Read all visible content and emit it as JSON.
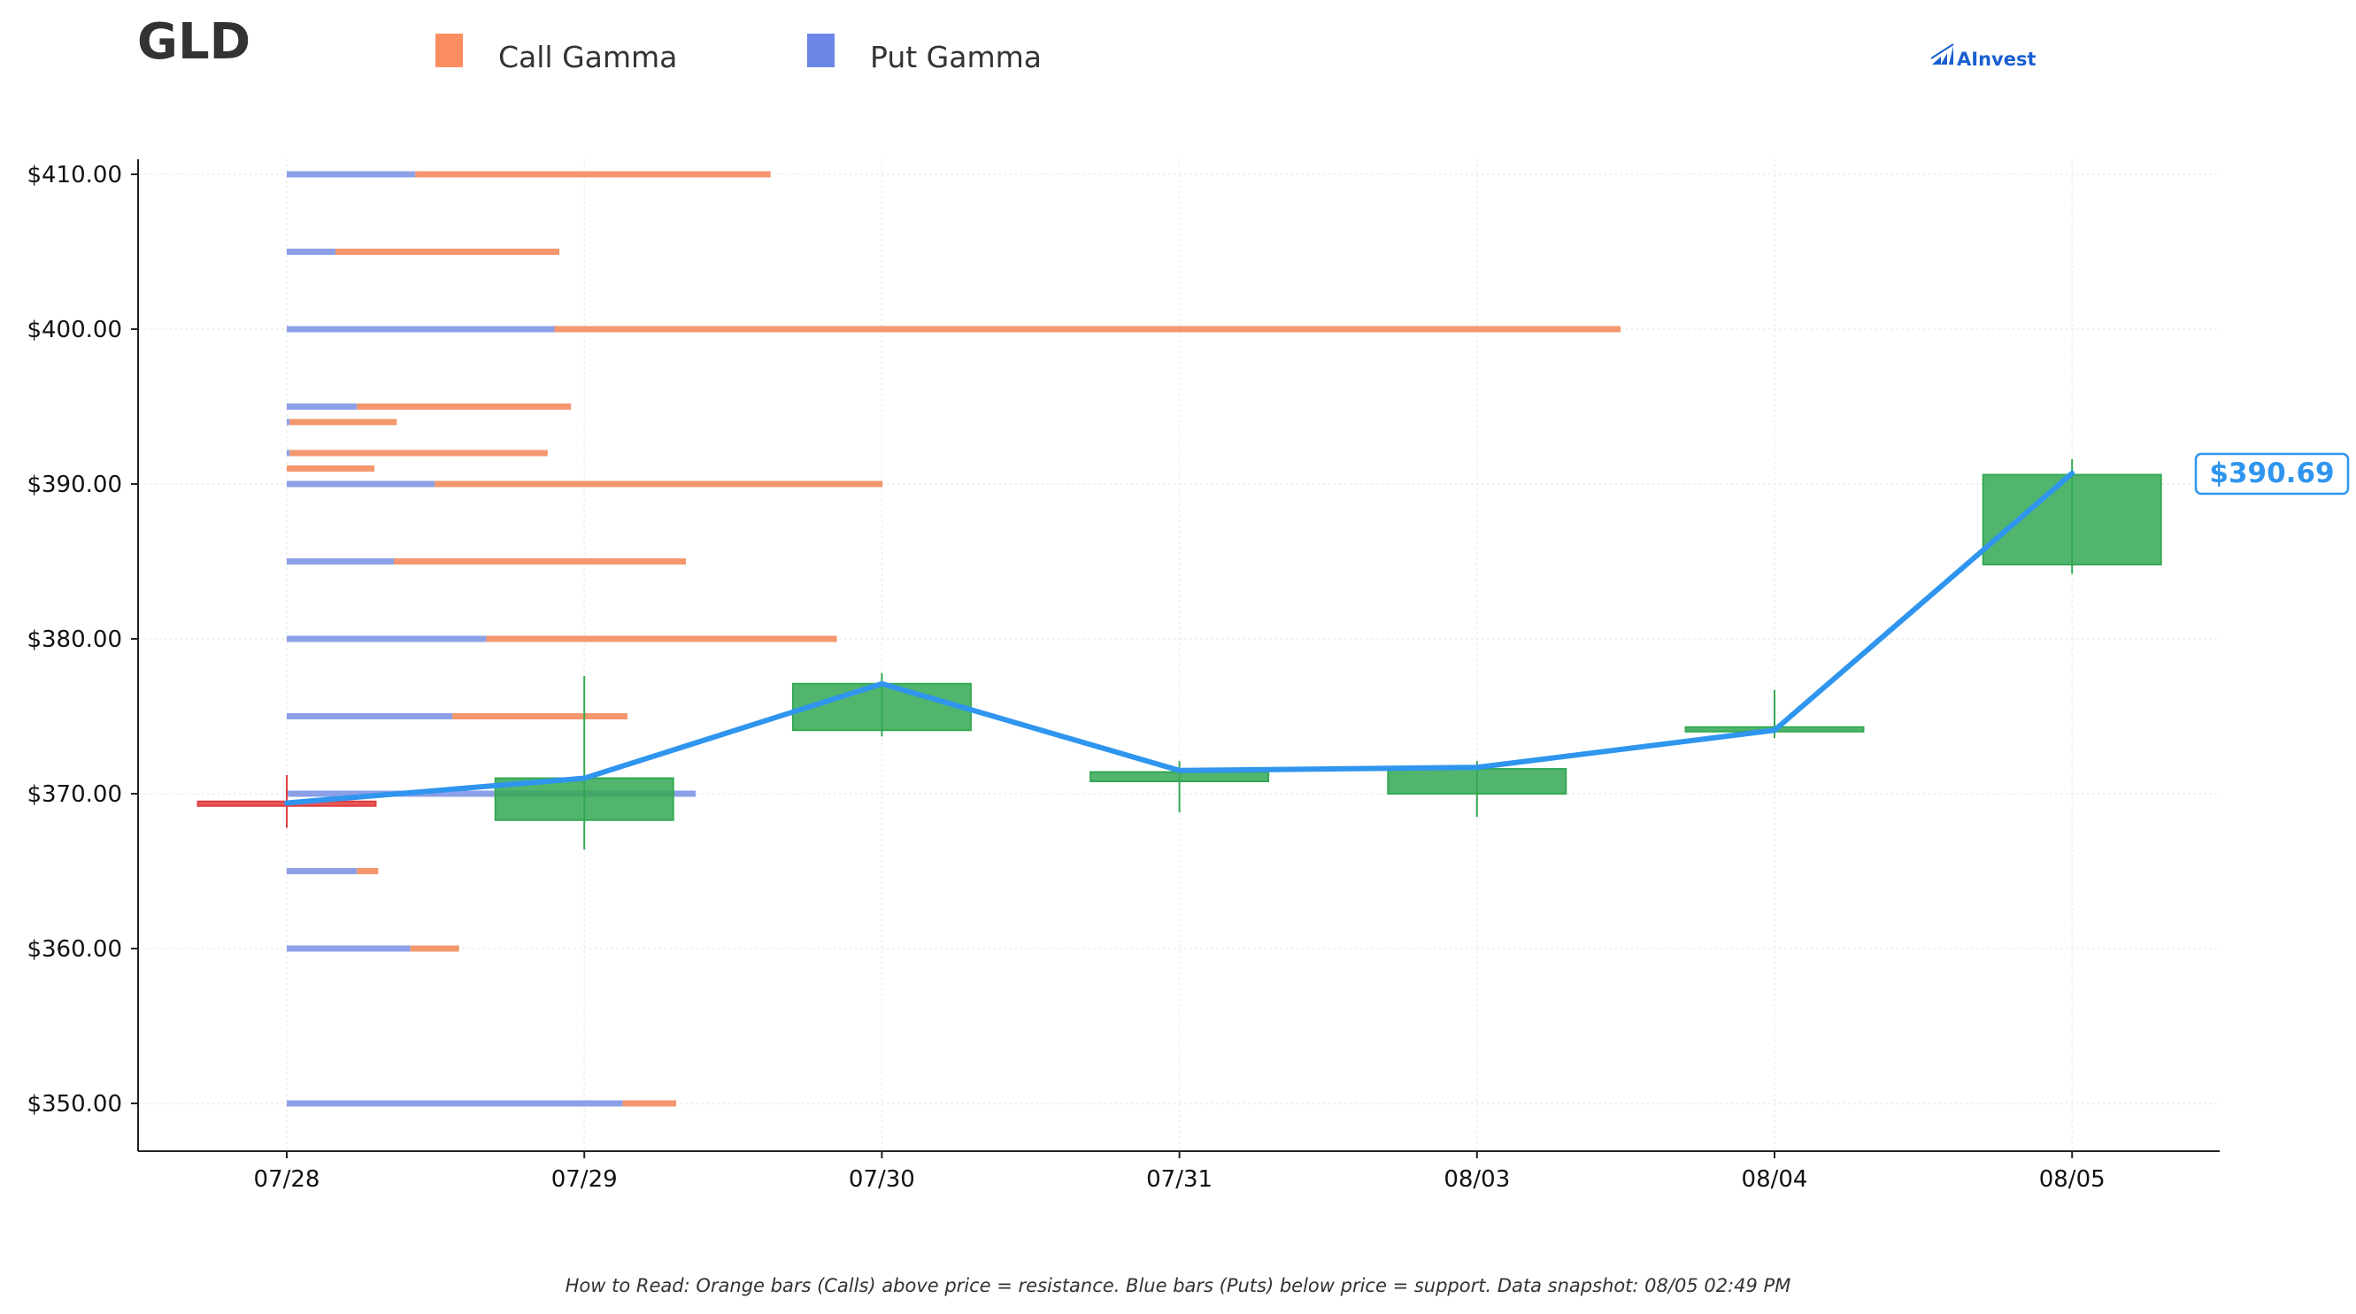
{
  "colors": {
    "call": "#f4976e",
    "call_legend": "#fc8d62",
    "put": "#8ca0e8",
    "put_legend": "#6a86e6",
    "price_line": "#2f95ee",
    "candle_up": "#34a853",
    "candle_down": "#e03c3c",
    "brand": "#1a5fd0",
    "axis": "#222222",
    "grid": "#eeeeee"
  },
  "icons": {
    "brand_logo": "bar-chart-arrow-icon"
  },
  "header": {
    "title": "GLD",
    "brand": "AInvest"
  },
  "legend": {
    "call_label": "Call Gamma",
    "put_label": "Put Gamma"
  },
  "current_price": {
    "label": "$390.69"
  },
  "footer": {
    "note": "How to Read: Orange bars (Calls) above price = resistance. Blue bars (Puts) below price = support. Data snapshot: 08/05 02:49 PM"
  },
  "chart_data": {
    "type": "candlestick",
    "title": "GLD",
    "categories": [
      "07/28",
      "07/29",
      "07/30",
      "07/31",
      "08/03",
      "08/04",
      "08/05"
    ],
    "y_tick_labels": [
      "$350.00",
      "$360.00",
      "$370.00",
      "$380.00",
      "$390.00",
      "$400.00",
      "$410.00"
    ],
    "y_tick_values": [
      350,
      360,
      370,
      380,
      390,
      400,
      410
    ],
    "ylim": [
      347,
      411
    ],
    "grid": true,
    "candles": [
      {
        "date": "07/28",
        "open": 369.5,
        "close": 369.5,
        "high": 371.2,
        "low": 367.8
      },
      {
        "date": "07/29",
        "open": 368.3,
        "close": 371.0,
        "high": 377.6,
        "low": 366.4
      },
      {
        "date": "07/30",
        "open": 374.1,
        "close": 377.1,
        "high": 377.8,
        "low": 373.7
      },
      {
        "date": "07/31",
        "open": 370.8,
        "close": 371.4,
        "high": 372.1,
        "low": 368.8
      },
      {
        "date": "08/03",
        "open": 370.0,
        "close": 371.6,
        "high": 372.1,
        "low": 368.5
      },
      {
        "date": "08/04",
        "open": 374.1,
        "close": 374.3,
        "high": 376.7,
        "low": 373.6
      },
      {
        "date": "08/05",
        "open": 384.8,
        "close": 390.6,
        "high": 391.6,
        "low": 384.2
      }
    ],
    "price_line": {
      "x": [
        "07/28",
        "07/29",
        "07/30",
        "07/31",
        "08/03",
        "08/04",
        "08/05"
      ],
      "y": [
        369.4,
        371.0,
        377.1,
        371.5,
        371.7,
        374.1,
        390.69
      ]
    },
    "gamma_bars": {
      "series": [
        {
          "name": "Call Gamma",
          "strikes": [
            410,
            405,
            400,
            395,
            394,
            392,
            391,
            390,
            385,
            380,
            375,
            370,
            365,
            360,
            350
          ],
          "values": [
            3.65,
            2.3,
            10.95,
            2.2,
            1.1,
            2.65,
            0.9,
            4.6,
            3.0,
            3.6,
            1.8,
            0.0,
            0.22,
            0.5,
            0.55
          ]
        },
        {
          "name": "Put Gamma",
          "strikes": [
            410,
            405,
            400,
            395,
            394,
            392,
            391,
            390,
            385,
            380,
            375,
            370,
            365,
            360,
            350
          ],
          "values": [
            1.32,
            0.5,
            2.75,
            0.72,
            0.03,
            0.03,
            0.0,
            1.52,
            1.1,
            2.05,
            1.7,
            4.2,
            0.72,
            1.27,
            3.45
          ]
        }
      ]
    },
    "legend_position": "top"
  }
}
